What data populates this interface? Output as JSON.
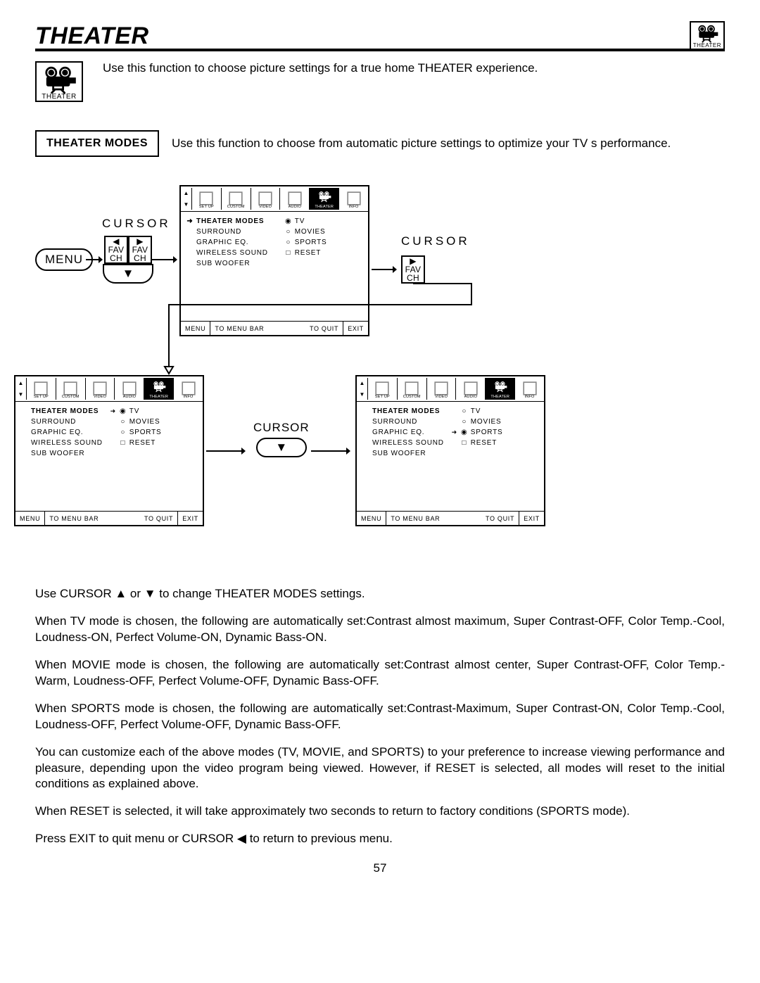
{
  "title": "THEATER",
  "icon_label": "THEATER",
  "intro": "Use this function to choose picture settings for a true home THEATER experience.",
  "modes_title": "THEATER MODES",
  "modes_desc": "Use this function to choose from automatic picture settings to optimize your TV s performance.",
  "cursor_label": "CURSOR",
  "menu_label": "MENU",
  "fav": "FAV",
  "ch": "CH",
  "iconbar": [
    "SET UP",
    "CUSTOM",
    "VIDEO",
    "AUDIO",
    "THEATER",
    "INFO"
  ],
  "menu_items": {
    "left": [
      {
        "label": "THEATER MODES",
        "bold": true,
        "arrow": true
      },
      {
        "label": "SURROUND"
      },
      {
        "label": "GRAPHIC EQ."
      },
      {
        "label": "WIRELESS SOUND"
      },
      {
        "label": "SUB WOOFER"
      }
    ],
    "right": [
      {
        "sym": "◉",
        "label": "TV"
      },
      {
        "sym": "○",
        "label": "MOVIES"
      },
      {
        "sym": "○",
        "label": "SPORTS"
      },
      {
        "sym": "□",
        "label": "RESET"
      }
    ],
    "right_b": [
      {
        "arrow": true,
        "sym": "◉",
        "label": "TV"
      },
      {
        "sym": "○",
        "label": "MOVIES"
      },
      {
        "sym": "○",
        "label": "SPORTS"
      },
      {
        "sym": "□",
        "label": "RESET"
      }
    ],
    "right_c": [
      {
        "sym": "○",
        "label": "TV"
      },
      {
        "sym": "○",
        "label": "MOVIES"
      },
      {
        "arrow": true,
        "sym": "◉",
        "label": "SPORTS"
      },
      {
        "sym": "□",
        "label": "RESET"
      }
    ]
  },
  "footer": {
    "menu": "MENU",
    "bar": "TO MENU BAR",
    "quit": "TO QUIT",
    "exit": "EXIT"
  },
  "paragraphs": [
    "Use CURSOR ▲ or ▼ to change THEATER MODES settings.",
    "When TV mode is chosen, the following are automatically set:Contrast almost maximum, Super Contrast-OFF, Color Temp.-Cool, Loudness-ON, Perfect Volume-ON, Dynamic Bass-ON.",
    "When MOVIE mode is chosen, the following are automatically set:Contrast almost center, Super Contrast-OFF, Color Temp.-Warm, Loudness-OFF, Perfect Volume-OFF, Dynamic Bass-OFF.",
    "When SPORTS mode is chosen, the following are automatically set:Contrast-Maximum, Super Contrast-ON, Color Temp.-Cool, Loudness-OFF, Perfect Volume-OFF, Dynamic Bass-OFF.",
    "You can customize each of the above modes (TV, MOVIE, and SPORTS) to your preference to increase viewing performance and pleasure, depending upon the video program being viewed. However, if RESET is selected, all modes will reset to the initial conditions as explained above.",
    "When RESET is selected, it will take approximately two seconds to return to factory conditions (SPORTS mode).",
    "Press EXIT to quit menu or CURSOR ◀ to return to previous menu."
  ],
  "page": "57",
  "svg": {
    "projector": "<svg viewBox='0 0 40 30' stroke='#000' fill='none' stroke-width='2'><circle cx='12' cy='8' r='5'/><circle cx='26' cy='8' r='5'/><circle cx='12' cy='8' r='2' fill='#000'/><circle cx='26' cy='8' r='2' fill='#000'/><rect x='8' y='13' width='22' height='8' rx='1' fill='#000'/><rect x='30' y='14' width='6' height='4' fill='#000'/><rect x='14' y='21' width='10' height='4'/><line x1='16' y1='25' x2='12' y2='29'/><line x1='22' y1='25' x2='26' y2='29'/></svg>",
    "generic": "<svg viewBox='0 0 20 20'><rect x='2' y='2' width='16' height='16' fill='none' stroke='#888' stroke-width='1.5'/></svg>"
  }
}
